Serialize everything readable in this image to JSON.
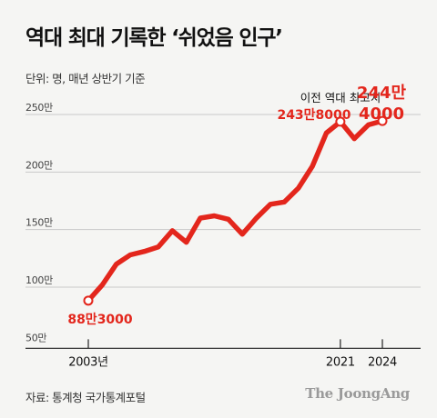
{
  "header": {
    "title": "역대 최대 기록한 ‘쉬었음 인구’",
    "unit_note": "단위: 명, 매년 상반기 기준"
  },
  "footer": {
    "source": "자료: 통계청 국가통계포털",
    "brand": "The JoongAng"
  },
  "colors": {
    "line": "#e3261c",
    "annotation": "#e3261c",
    "grid": "#c9c9c9",
    "background": "#f5f5f3"
  },
  "annotations": {
    "first": "88만3000",
    "previous_record_caption": "이전 역대 최고치",
    "previous_record_value": "243만8000",
    "last_line1": "244만",
    "last_line2": "4000"
  },
  "chart_data": {
    "type": "line",
    "title": "역대 최대 기록한 ‘쉬었음 인구’",
    "x": [
      2003,
      2004,
      2005,
      2006,
      2007,
      2008,
      2009,
      2010,
      2011,
      2012,
      2013,
      2014,
      2015,
      2016,
      2017,
      2018,
      2019,
      2020,
      2021,
      2022,
      2023,
      2024
    ],
    "series": [
      {
        "values": [
          88.3,
          102,
          120,
          128,
          131,
          135,
          149,
          139,
          160,
          162,
          159,
          146,
          160,
          172,
          174,
          186,
          205,
          234,
          243.8,
          229,
          241,
          244.4
        ]
      }
    ],
    "unit": "만 명",
    "ylim": [
      50,
      260
    ],
    "y_ticks": [
      {
        "value": 250,
        "label": "250만"
      },
      {
        "value": 200,
        "label": "200만"
      },
      {
        "value": 150,
        "label": "150만"
      },
      {
        "value": 100,
        "label": "100만"
      },
      {
        "value": 50,
        "label": "50만"
      }
    ],
    "x_ticks": [
      {
        "value": 2003,
        "label": "2003년"
      },
      {
        "value": 2021,
        "label": "2021"
      },
      {
        "value": 2024,
        "label": "2024"
      }
    ],
    "highlighted_points": [
      2003,
      2021,
      2024
    ],
    "grid": true
  }
}
